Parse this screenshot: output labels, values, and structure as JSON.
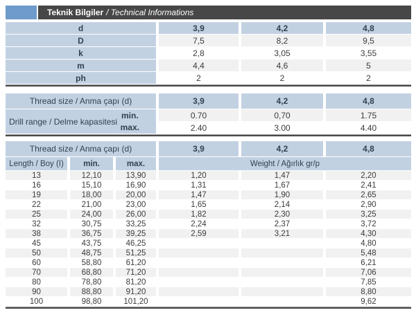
{
  "title": {
    "turkish": "Teknik Bilgiler",
    "english": "/ Technical Informations"
  },
  "colors": {
    "header_bar": "#474747",
    "accent_square": "#6e9bcb",
    "cell_blue": "#c2d1e2",
    "row_alt_gray": "#f1f1f1",
    "divider_dark": "#4a4a4a",
    "text_dark": "#3b3b3b",
    "header_text": "#31414f"
  },
  "thread_sizes": [
    "3,9",
    "4,2",
    "4,8"
  ],
  "dimensions_table": {
    "header": {
      "label": "d",
      "values": [
        "3,9",
        "4,2",
        "4,8"
      ]
    },
    "rows": [
      {
        "label": "D",
        "values": [
          "7,5",
          "8,2",
          "9,5"
        ]
      },
      {
        "label": "k",
        "values": [
          "2,8",
          "3,05",
          "3,55"
        ]
      },
      {
        "label": "m",
        "values": [
          "4,4",
          "4,6",
          "5"
        ]
      },
      {
        "label": "ph",
        "values": [
          "2",
          "2",
          "2"
        ]
      }
    ]
  },
  "drill_table": {
    "header_label": "Thread size / Anma çapı (d)",
    "header_values": [
      "3,9",
      "4,2",
      "4,8"
    ],
    "range_label": "Drill range / Delme kapasitesi",
    "min_label": "min.",
    "max_label": "max.",
    "min_values": [
      "0.70",
      "0,70",
      "1.75"
    ],
    "max_values": [
      "2.40",
      "3.00",
      "4.40"
    ]
  },
  "length_table": {
    "header_label": "Thread size / Anma çapı (d)",
    "header_values": [
      "3,9",
      "4,2",
      "4,8"
    ],
    "length_label": "Length / Boy (I)",
    "min_label": "min.",
    "max_label": "max.",
    "weight_label": "Weight / Ağırlık gr/p",
    "rows": [
      {
        "length": "13",
        "min": "12,10",
        "max": "13,90",
        "weights": [
          "1,20",
          "1,47",
          "2,20"
        ]
      },
      {
        "length": "16",
        "min": "15,10",
        "max": "16,90",
        "weights": [
          "1,31",
          "1,67",
          "2,41"
        ]
      },
      {
        "length": "19",
        "min": "18,00",
        "max": "20,00",
        "weights": [
          "1,47",
          "1,90",
          "2,65"
        ]
      },
      {
        "length": "22",
        "min": "21,00",
        "max": "23,00",
        "weights": [
          "1,65",
          "2,14",
          "2,90"
        ]
      },
      {
        "length": "25",
        "min": "24,00",
        "max": "26,00",
        "weights": [
          "1,82",
          "2,30",
          "3,25"
        ]
      },
      {
        "length": "32",
        "min": "30,75",
        "max": "33,25",
        "weights": [
          "2,24",
          "2,37",
          "3,72"
        ]
      },
      {
        "length": "38",
        "min": "36,75",
        "max": "39,25",
        "weights": [
          "2,59",
          "3,21",
          "4,30"
        ]
      },
      {
        "length": "45",
        "min": "43,75",
        "max": "46,25",
        "weights": [
          "",
          "",
          "4,80"
        ]
      },
      {
        "length": "50",
        "min": "48,75",
        "max": "51,25",
        "weights": [
          "",
          "",
          "5,48"
        ]
      },
      {
        "length": "60",
        "min": "58,80",
        "max": "61,20",
        "weights": [
          "",
          "",
          "6,21"
        ]
      },
      {
        "length": "70",
        "min": "68,80",
        "max": "71,20",
        "weights": [
          "",
          "",
          "7,06"
        ]
      },
      {
        "length": "80",
        "min": "78,80",
        "max": "81,20",
        "weights": [
          "",
          "",
          "7,85"
        ]
      },
      {
        "length": "90",
        "min": "88,80",
        "max": "91,20",
        "weights": [
          "",
          "",
          "8,80"
        ]
      },
      {
        "length": "100",
        "min": "98,80",
        "max": "101,20",
        "weights": [
          "",
          "",
          "9,62"
        ]
      }
    ]
  }
}
